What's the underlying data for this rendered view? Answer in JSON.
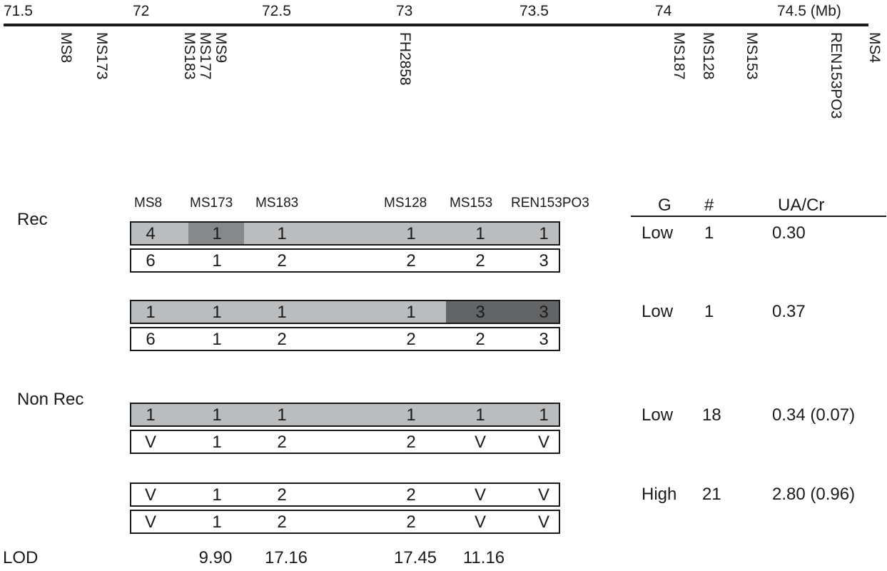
{
  "map": {
    "ticks": [
      "71.5",
      "72",
      "72.5",
      "73",
      "73.5",
      "74",
      "74.5 (Mb)"
    ],
    "markers": [
      "MS8",
      "MS173",
      "MS183",
      "MS177",
      "MS9",
      "FH2858",
      "MS187",
      "MS128",
      "MS153",
      "REN153PO3",
      "MS4"
    ]
  },
  "haplotypes": {
    "columns": [
      "MS8",
      "MS173",
      "MS183",
      "MS128",
      "MS153",
      "REN153PO3"
    ],
    "group_labels": {
      "rec": "Rec",
      "non_rec": "Non Rec"
    },
    "rows": [
      {
        "cells": [
          "4",
          "1",
          "1",
          "1",
          "1",
          "1"
        ],
        "shade": [
          "light",
          "medium",
          "light",
          "light",
          "light",
          "light"
        ]
      },
      {
        "cells": [
          "6",
          "1",
          "2",
          "2",
          "2",
          "3"
        ],
        "shade": [
          "white",
          "white",
          "white",
          "white",
          "white",
          "white"
        ]
      },
      {
        "cells": [
          "1",
          "1",
          "1",
          "1",
          "3",
          "3"
        ],
        "shade": [
          "light",
          "light",
          "light",
          "light",
          "dark",
          "dark"
        ]
      },
      {
        "cells": [
          "6",
          "1",
          "2",
          "2",
          "2",
          "3"
        ],
        "shade": [
          "white",
          "white",
          "white",
          "white",
          "white",
          "white"
        ]
      },
      {
        "cells": [
          "1",
          "1",
          "1",
          "1",
          "1",
          "1"
        ],
        "shade": [
          "light",
          "light",
          "light",
          "light",
          "light",
          "light"
        ]
      },
      {
        "cells": [
          "V",
          "1",
          "2",
          "2",
          "V",
          "V"
        ],
        "shade": [
          "white",
          "white",
          "white",
          "white",
          "white",
          "white"
        ]
      },
      {
        "cells": [
          "V",
          "1",
          "2",
          "2",
          "V",
          "V"
        ],
        "shade": [
          "white",
          "white",
          "white",
          "white",
          "white",
          "white"
        ]
      },
      {
        "cells": [
          "V",
          "1",
          "2",
          "2",
          "V",
          "V"
        ],
        "shade": [
          "white",
          "white",
          "white",
          "white",
          "white",
          "white"
        ]
      }
    ]
  },
  "colors": {
    "light": "#bbbcbe",
    "medium": "#87888a",
    "dark": "#636466",
    "white": "#ffffff",
    "ink": "#1a1a1a"
  },
  "table": {
    "headers": [
      "G",
      "#",
      "UA/Cr"
    ],
    "rows": [
      [
        "Low",
        "1",
        "0.30"
      ],
      [
        "Low",
        "1",
        "0.37"
      ],
      [
        "Low",
        "18",
        "0.34 (0.07)"
      ],
      [
        "High",
        "21",
        "2.80 (0.96)"
      ]
    ]
  },
  "lod": {
    "label": "LOD",
    "values": [
      "9.90",
      "17.16",
      "17.45",
      "11.16"
    ]
  }
}
